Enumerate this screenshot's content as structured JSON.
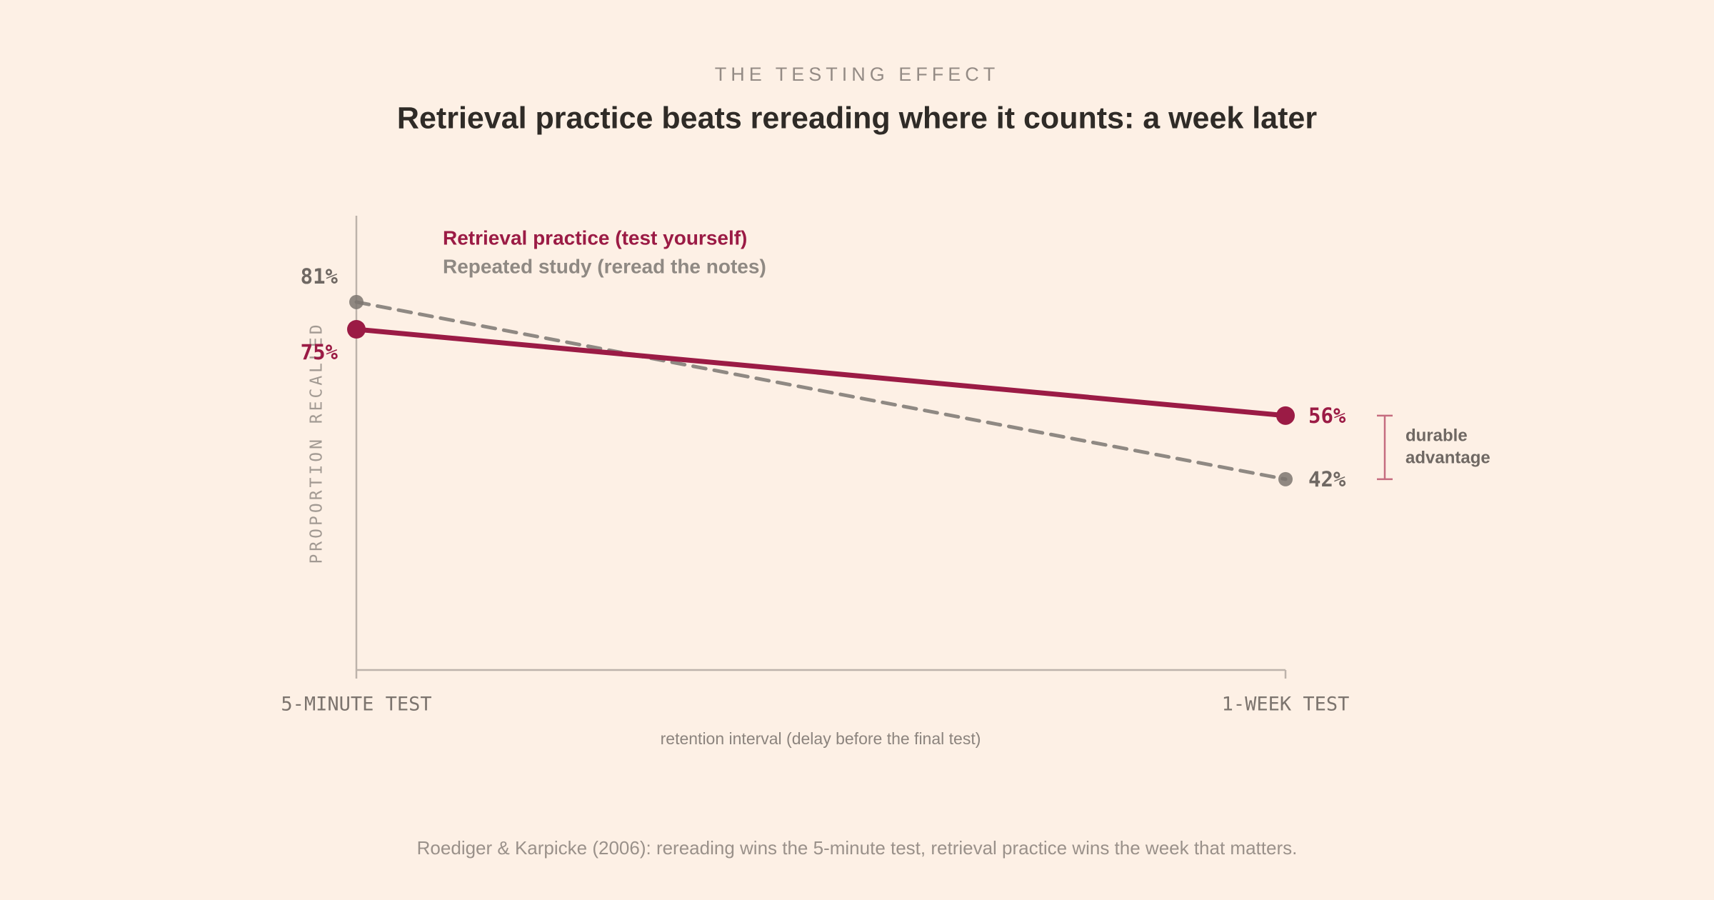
{
  "chart_data": {
    "type": "line",
    "kicker": "THE TESTING EFFECT",
    "title": "Retrieval practice beats rereading where it counts: a week later",
    "categories": [
      "5-MINUTE TEST",
      "1-WEEK TEST"
    ],
    "series": [
      {
        "name": "Retrieval practice (test yourself)",
        "color": "#9b1b45",
        "style": "solid",
        "values": [
          75,
          56
        ],
        "value_labels": [
          "75%",
          "56%"
        ]
      },
      {
        "name": "Repeated study (reread the notes)",
        "color": "#8f8983",
        "style": "dashed",
        "values": [
          81,
          42
        ],
        "value_labels": [
          "81%",
          "42%"
        ]
      }
    ],
    "ylim": [
      0,
      100
    ],
    "y_label": "PROPORTION RECALLED",
    "x_label": "retention interval (delay before the final test)",
    "annotation": [
      "durable",
      "advantage"
    ],
    "footnote": "Roediger & Karpicke (2006): rereading wins the 5-minute test, retrieval practice wins the week that matters."
  }
}
